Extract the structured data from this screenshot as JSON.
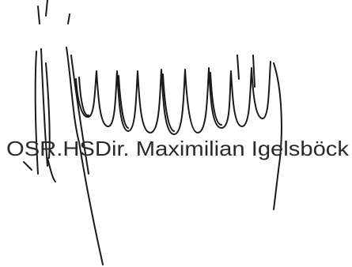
{
  "signature_text": "OSR.HSDir. Maximilian Igelsböck"
}
